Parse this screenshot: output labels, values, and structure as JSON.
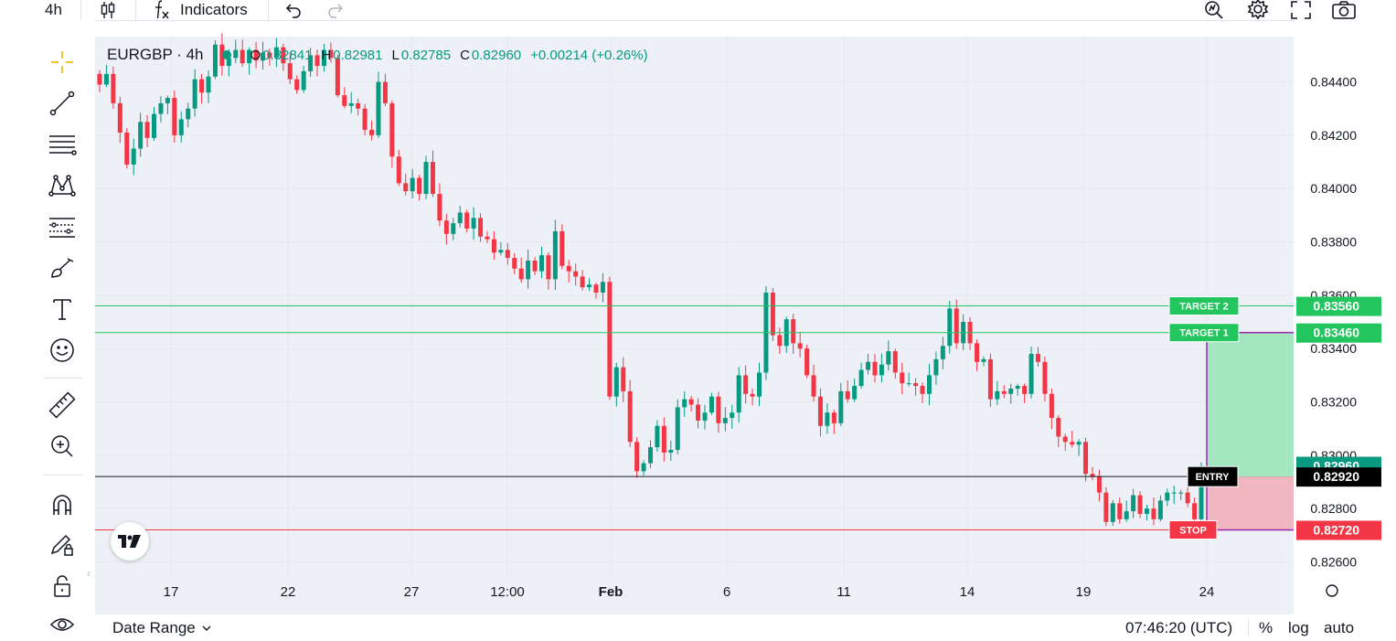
{
  "toolbar": {
    "interval": "4h",
    "indicators_label": "Indicators"
  },
  "legend": {
    "symbol": "EURGBP · 4h",
    "open_key": "O",
    "open": "0.82841",
    "high_key": "H",
    "high": "0.82981",
    "low_key": "L",
    "low": "0.82785",
    "close_key": "C",
    "close": "0.82960",
    "change": "+0.00214 (+0.26%)"
  },
  "left_tools": [
    {
      "name": "crosshair-icon"
    },
    {
      "name": "trend-line-icon"
    },
    {
      "name": "fib-retracement-icon"
    },
    {
      "name": "pattern-icon"
    },
    {
      "name": "forecast-icon"
    },
    {
      "name": "brush-icon"
    },
    {
      "name": "text-icon"
    },
    {
      "name": "emoji-icon"
    },
    {
      "name": "ruler-icon"
    },
    {
      "name": "zoom-in-icon"
    },
    {
      "name": "magnet-icon"
    },
    {
      "name": "lock-pencil-icon"
    },
    {
      "name": "lock-icon"
    },
    {
      "name": "eye-icon"
    }
  ],
  "colors": {
    "up": "#089981",
    "down": "#f23645",
    "target_line": "#22c55e",
    "stop_line": "#f23645",
    "entry_line": "#131722",
    "profit_zone": "#a3e7c1",
    "loss_zone": "#f0b7c1",
    "zone_border": "#9c27b0",
    "grid": "#e6e9f1",
    "background": "#edf0f6"
  },
  "price_axis": {
    "ticks": [
      "0.84400",
      "0.84200",
      "0.84000",
      "0.83800",
      "0.83600",
      "0.83400",
      "0.83200",
      "0.83000",
      "0.82800",
      "0.82600"
    ],
    "labels": [
      {
        "text": "0.83560",
        "value": 0.8356,
        "color": "#22c55e"
      },
      {
        "text": "0.83460",
        "value": 0.8346,
        "color": "#22c55e"
      },
      {
        "text": "0.82960",
        "value": 0.8296,
        "color": "#089981"
      },
      {
        "text": "0.82920",
        "value": 0.8292,
        "color": "#000000"
      },
      {
        "text": "0.82720",
        "value": 0.8272,
        "color": "#f23645"
      }
    ]
  },
  "time_axis": {
    "ticks": [
      {
        "label": "17",
        "bold": false
      },
      {
        "label": "22",
        "bold": false
      },
      {
        "label": "27",
        "bold": false
      },
      {
        "label": "12:00",
        "bold": false
      },
      {
        "label": "Feb",
        "bold": true
      },
      {
        "label": "6",
        "bold": false
      },
      {
        "label": "11",
        "bold": false
      },
      {
        "label": "14",
        "bold": false
      },
      {
        "label": "19",
        "bold": false
      },
      {
        "label": "24",
        "bold": false
      }
    ]
  },
  "levels": {
    "target2": {
      "label": "TARGET 2",
      "price": 0.8356
    },
    "target1": {
      "label": "TARGET 1",
      "price": 0.8346
    },
    "entry": {
      "label": "ENTRY",
      "price": 0.8292
    },
    "stop": {
      "label": "STOP",
      "price": 0.8272
    }
  },
  "bottom": {
    "date_range": "Date Range",
    "time": "07:46:20 (UTC)",
    "percent": "%",
    "log": "log",
    "auto": "auto"
  },
  "chart_data": {
    "type": "candlestick",
    "symbol": "EURGBP",
    "interval": "4h",
    "ylim": [
      0.8254,
      0.8457
    ],
    "closes": [
      0.8439,
      0.8443,
      0.8432,
      0.8421,
      0.8409,
      0.8415,
      0.8425,
      0.8419,
      0.8428,
      0.8432,
      0.8434,
      0.842,
      0.8426,
      0.843,
      0.8441,
      0.8436,
      0.8442,
      0.8454,
      0.8446,
      0.8449,
      0.8452,
      0.8447,
      0.8452,
      0.8448,
      0.8451,
      0.8449,
      0.8453,
      0.8447,
      0.8441,
      0.8437,
      0.8444,
      0.845,
      0.8446,
      0.8452,
      0.8449,
      0.8435,
      0.8431,
      0.8432,
      0.843,
      0.8422,
      0.842,
      0.844,
      0.8432,
      0.8412,
      0.8402,
      0.8399,
      0.8404,
      0.8398,
      0.841,
      0.8398,
      0.8388,
      0.8383,
      0.8387,
      0.8391,
      0.8385,
      0.8389,
      0.8382,
      0.8381,
      0.8376,
      0.8377,
      0.8374,
      0.837,
      0.8366,
      0.8373,
      0.8369,
      0.8375,
      0.8366,
      0.8384,
      0.8371,
      0.8369,
      0.8367,
      0.8363,
      0.8364,
      0.8361,
      0.8365,
      0.8322,
      0.8333,
      0.8324,
      0.8305,
      0.8294,
      0.8297,
      0.8303,
      0.8311,
      0.8301,
      0.8302,
      0.8318,
      0.8321,
      0.8319,
      0.8313,
      0.8316,
      0.8322,
      0.8312,
      0.8314,
      0.8316,
      0.833,
      0.8323,
      0.8322,
      0.8331,
      0.8361,
      0.8345,
      0.8341,
      0.8351,
      0.8342,
      0.834,
      0.833,
      0.8322,
      0.8311,
      0.8316,
      0.8312,
      0.8324,
      0.8321,
      0.8326,
      0.8332,
      0.8335,
      0.833,
      0.8334,
      0.8339,
      0.8331,
      0.8327,
      0.8327,
      0.8326,
      0.8323,
      0.833,
      0.8336,
      0.8341,
      0.8355,
      0.8342,
      0.835,
      0.8342,
      0.8335,
      0.8336,
      0.8321,
      0.8324,
      0.8323,
      0.8325,
      0.8326,
      0.8323,
      0.8338,
      0.8335,
      0.8323,
      0.8314,
      0.8307,
      0.8305,
      0.8304,
      0.8305,
      0.8293,
      0.8292,
      0.8286,
      0.8275,
      0.8282,
      0.8276,
      0.8279,
      0.8285,
      0.8278,
      0.828,
      0.8276,
      0.8283,
      0.8286,
      0.8286,
      0.8286,
      0.8282,
      0.8276,
      0.8296
    ]
  }
}
